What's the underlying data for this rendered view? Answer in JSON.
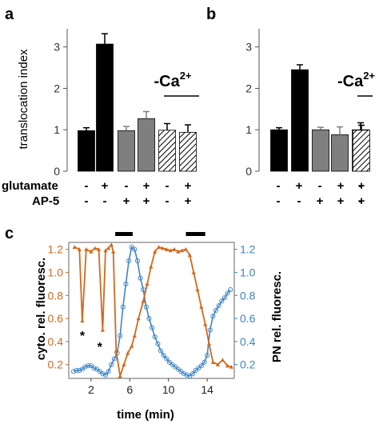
{
  "panel_labels": [
    "a",
    "b",
    "c"
  ],
  "conditions": {
    "row_labels": [
      "glutamate",
      "AP-5"
    ],
    "glutamate": [
      "-",
      "+",
      "-",
      "+",
      "-",
      "+"
    ],
    "ap5": [
      "-",
      "-",
      "+",
      "+",
      "-",
      "+"
    ]
  },
  "ca_label": "-Ca",
  "ca_superscript": "2+",
  "colors": {
    "black_bar": "#000000",
    "gray_bar": "#7f7f7f",
    "hatch": "#000000",
    "cyto_line": "#d2691e",
    "pn_line": "#3d85c6"
  },
  "chart_data": [
    {
      "panel": "a",
      "type": "bar",
      "ylabel": "translocation index",
      "ylim": [
        0,
        3.4
      ],
      "yticks": [
        "0",
        "1",
        "2",
        "3"
      ],
      "values": [
        0.98,
        3.07,
        0.98,
        1.27,
        0.99,
        0.94
      ],
      "errors": [
        0.07,
        0.25,
        0.1,
        0.17,
        0.16,
        0.18
      ],
      "fills": [
        "black",
        "black",
        "gray",
        "gray",
        "hatch",
        "hatch"
      ]
    },
    {
      "panel": "b",
      "type": "bar",
      "ylabel": "",
      "ylim": [
        0,
        3.4
      ],
      "yticks": [
        "0",
        "1",
        "2",
        "3"
      ],
      "values": [
        1.0,
        2.45,
        1.0,
        0.88,
        1.0,
        0.99
      ],
      "errors": [
        0.05,
        0.12,
        0.06,
        0.19,
        0.17,
        0.12
      ],
      "fills": [
        "black",
        "black",
        "gray",
        "gray",
        "hatch",
        "hatch"
      ]
    },
    {
      "panel": "c",
      "type": "line",
      "xlabel": "time (min)",
      "ylabel_left": "cyto. rel. fluoresc.",
      "ylabel_right": "PN rel. fluoresc.",
      "xlim": [
        -0.3,
        16.8
      ],
      "ylim": [
        0.08,
        1.26
      ],
      "xticks": [
        "2",
        "6",
        "10",
        "14"
      ],
      "yticks": [
        "0.2",
        "0.4",
        "0.6",
        "0.8",
        "1.0",
        "1.2"
      ],
      "stimulus_bars": [
        [
          4.5,
          6.3
        ],
        [
          11.8,
          13.8
        ]
      ],
      "asterisks": [
        {
          "x": 1.1,
          "y": 0.47,
          "text": "*"
        },
        {
          "x": 2.9,
          "y": 0.37,
          "text": "*"
        }
      ],
      "series": [
        {
          "axis": "left",
          "x": [
            0.3,
            0.8,
            1.1,
            1.5,
            2.0,
            2.4,
            2.8,
            3.2,
            3.5,
            3.8,
            4.1,
            4.3,
            4.6,
            5.0,
            5.4,
            5.8,
            6.2,
            6.5,
            6.9,
            7.4,
            7.8,
            8.2,
            8.6,
            9.0,
            9.4,
            9.8,
            10.2,
            10.6,
            11.0,
            11.4,
            11.8,
            12.2,
            12.6,
            13.0,
            13.4,
            13.8,
            14.2,
            14.6,
            15.1,
            15.6,
            16.1,
            16.5
          ],
          "y": [
            1.22,
            1.2,
            0.58,
            1.2,
            1.18,
            1.21,
            1.2,
            0.5,
            1.19,
            1.21,
            1.24,
            1.18,
            0.32,
            0.1,
            0.2,
            0.3,
            0.36,
            0.45,
            0.6,
            0.75,
            0.9,
            1.05,
            1.18,
            1.22,
            1.21,
            1.2,
            1.19,
            1.2,
            1.18,
            1.19,
            1.2,
            1.15,
            1.0,
            0.85,
            0.7,
            0.55,
            0.38,
            0.22,
            0.2,
            0.24,
            0.19,
            0.18
          ]
        },
        {
          "axis": "right",
          "x": [
            0.2,
            0.5,
            0.8,
            1.1,
            1.4,
            1.7,
            2.0,
            2.3,
            2.6,
            2.9,
            3.2,
            3.5,
            3.8,
            4.1,
            4.4,
            4.7,
            5.0,
            5.3,
            5.6,
            5.9,
            6.2,
            6.5,
            6.8,
            7.1,
            7.4,
            7.7,
            8.0,
            8.3,
            8.6,
            8.9,
            9.2,
            9.5,
            9.8,
            10.1,
            10.4,
            10.7,
            11.0,
            11.3,
            11.6,
            11.9,
            12.2,
            12.5,
            12.8,
            13.1,
            13.4,
            13.7,
            14.0,
            14.3,
            14.6,
            14.9,
            15.2,
            15.5,
            15.8,
            16.1,
            16.4
          ],
          "y": [
            0.14,
            0.15,
            0.15,
            0.16,
            0.18,
            0.19,
            0.19,
            0.17,
            0.16,
            0.14,
            0.12,
            0.11,
            0.14,
            0.2,
            0.25,
            0.3,
            0.45,
            0.7,
            0.9,
            1.1,
            1.22,
            1.2,
            1.1,
            0.95,
            0.85,
            0.7,
            0.6,
            0.52,
            0.44,
            0.38,
            0.32,
            0.28,
            0.25,
            0.22,
            0.2,
            0.18,
            0.16,
            0.14,
            0.12,
            0.11,
            0.1,
            0.12,
            0.15,
            0.17,
            0.19,
            0.22,
            0.28,
            0.5,
            0.62,
            0.67,
            0.71,
            0.75,
            0.78,
            0.82,
            0.85
          ]
        }
      ]
    }
  ]
}
